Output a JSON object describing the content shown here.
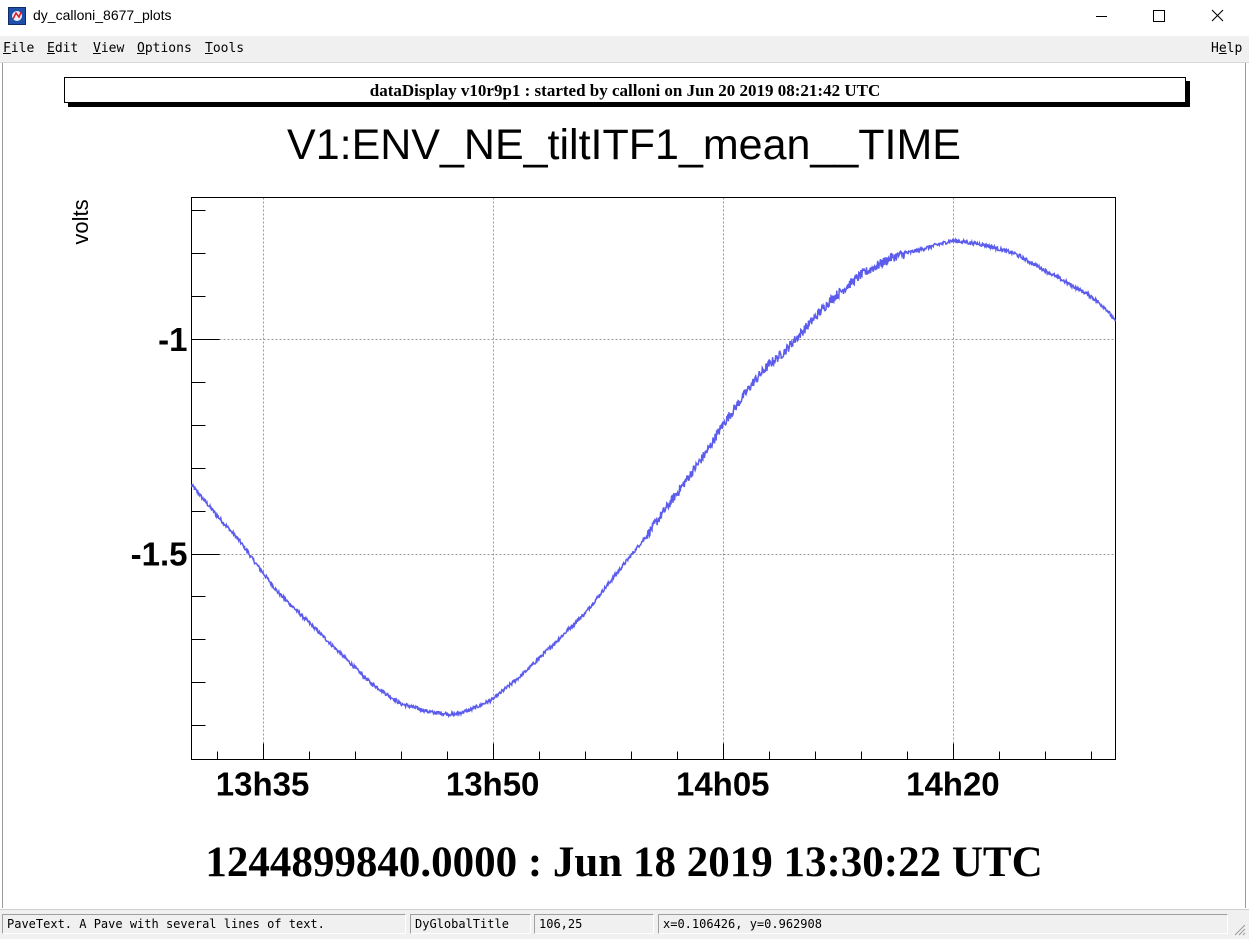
{
  "window": {
    "title": "dy_calloni_8677_plots",
    "controls": {
      "minimize_icon": "minimize-icon",
      "maximize_icon": "maximize-icon",
      "close_icon": "close-icon"
    }
  },
  "menubar": {
    "items": [
      {
        "label": "File",
        "mnemonic": "F",
        "rest": "ile"
      },
      {
        "label": "Edit",
        "mnemonic": "E",
        "rest": "dit"
      },
      {
        "label": "View",
        "mnemonic": "V",
        "rest": "iew"
      },
      {
        "label": "Options",
        "mnemonic": "O",
        "rest": "ptions"
      },
      {
        "label": "Tools",
        "mnemonic": "T",
        "rest": "ools"
      }
    ],
    "help": {
      "label": "Help",
      "pre": "H",
      "mnemonic": "e",
      "rest": "lp"
    }
  },
  "canvas": {
    "pave_text": "dataDisplay v10r9p1 : started by calloni on Jun 20 2019 08:21:42 UTC",
    "time_label": "1244899840.0000 : Jun 18 2019 13:30:22 UTC"
  },
  "chart_data": {
    "type": "line",
    "title": "V1:ENV_NE_tiltITF1_mean__TIME",
    "ylabel": "volts",
    "xlabel": "",
    "x_unit": "minutes after 13h30",
    "x_ticks": [
      {
        "label": "13h35",
        "value": 5
      },
      {
        "label": "13h50",
        "value": 20
      },
      {
        "label": "14h05",
        "value": 35
      },
      {
        "label": "14h20",
        "value": 50
      }
    ],
    "y_ticks": [
      {
        "label": "-1",
        "value": -1.0
      },
      {
        "label": "-1.5",
        "value": -1.5
      }
    ],
    "xlim": [
      0.37,
      60.6
    ],
    "ylim": [
      -1.98,
      -0.67
    ],
    "grid": true,
    "line_color": "#5b5bec",
    "series": [
      {
        "x": [
          0.37,
          2,
          3.5,
          4.5,
          6,
          8,
          10,
          12,
          14,
          16,
          17.5,
          18.5,
          20,
          22,
          24,
          26,
          28,
          30,
          31,
          32,
          33,
          34,
          35,
          36,
          37,
          38,
          39,
          40,
          41,
          42,
          43,
          44,
          45,
          46,
          47,
          48,
          49,
          50,
          51,
          52,
          53,
          54,
          55,
          56,
          57,
          58,
          59,
          60,
          60.6
        ],
        "y": [
          -1.34,
          -1.41,
          -1.47,
          -1.52,
          -1.59,
          -1.66,
          -1.73,
          -1.8,
          -1.85,
          -1.87,
          -1.875,
          -1.865,
          -1.84,
          -1.78,
          -1.71,
          -1.64,
          -1.55,
          -1.46,
          -1.41,
          -1.36,
          -1.31,
          -1.26,
          -1.2,
          -1.15,
          -1.1,
          -1.06,
          -1.03,
          -0.99,
          -0.95,
          -0.91,
          -0.88,
          -0.85,
          -0.83,
          -0.81,
          -0.8,
          -0.79,
          -0.78,
          -0.77,
          -0.775,
          -0.78,
          -0.79,
          -0.8,
          -0.82,
          -0.84,
          -0.86,
          -0.88,
          -0.9,
          -0.93,
          -0.96
        ]
      }
    ]
  },
  "statusbar": {
    "object_info": "PaveText. A Pave with several lines of text.",
    "object_name": "DyGlobalTitle",
    "pixel_pos": "106,25",
    "coords": "x=0.106426, y=0.962908"
  }
}
